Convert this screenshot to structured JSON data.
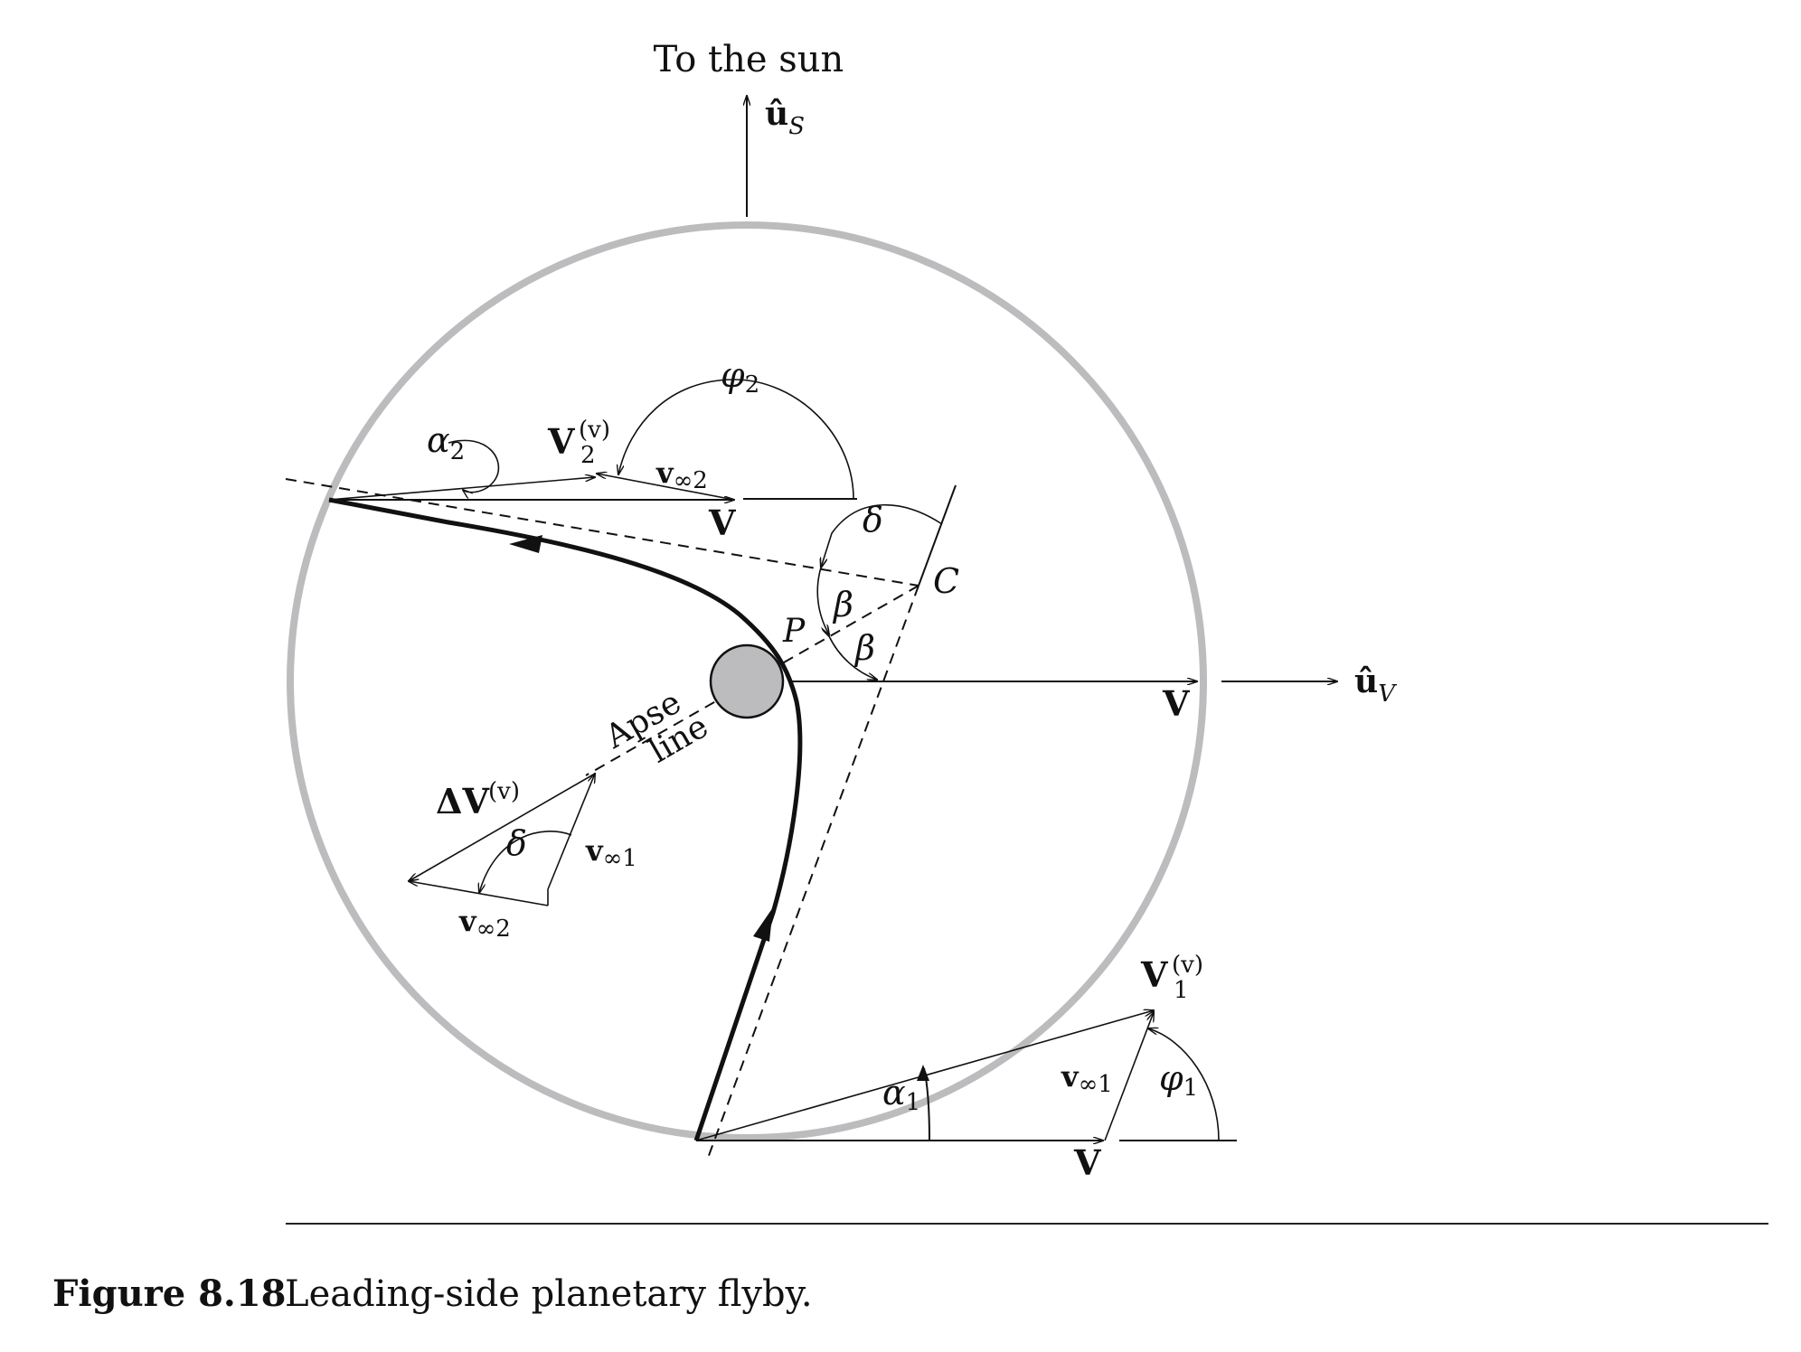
{
  "labels": {
    "to_sun": "To the sun",
    "u_s": "û",
    "u_s_sub": "S",
    "u_v": "û",
    "u_v_sub": "V",
    "phi2": "φ",
    "phi2_sub": "2",
    "alpha2": "α",
    "alpha2_sub": "2",
    "V2v": "V",
    "V2v_sub": "2",
    "V2v_sup": "(v)",
    "vinf2_top": "v",
    "vinf2_top_sub": "∞2",
    "V_top": "V",
    "delta_top": "δ",
    "C": "C",
    "beta_upper": "β",
    "beta_lower": "β",
    "P": "P",
    "V_right": "V",
    "apse": "Apse",
    "line": "line",
    "dV": "ΔV",
    "dV_sup": "(v)",
    "delta_tri": "δ",
    "vinf1_tri": "v",
    "vinf1_tri_sub": "∞1",
    "vinf2_tri": "v",
    "vinf2_tri_sub": "∞2",
    "V1v": "V",
    "V1v_sub": "1",
    "V1v_sup": "(v)",
    "vinf1_bottom": "v",
    "vinf1_bottom_sub": "∞1",
    "phi1": "φ",
    "phi1_sub": "1",
    "alpha1": "α",
    "alpha1_sub": "1",
    "V_bottom": "V"
  },
  "caption": {
    "figure": "Figure 8.18",
    "text": "Leading-side planetary flyby."
  },
  "colors": {
    "sphere_of_influence": "#bcbcbe",
    "planet_fill": "#bcbcbe",
    "ink": "#111111"
  }
}
